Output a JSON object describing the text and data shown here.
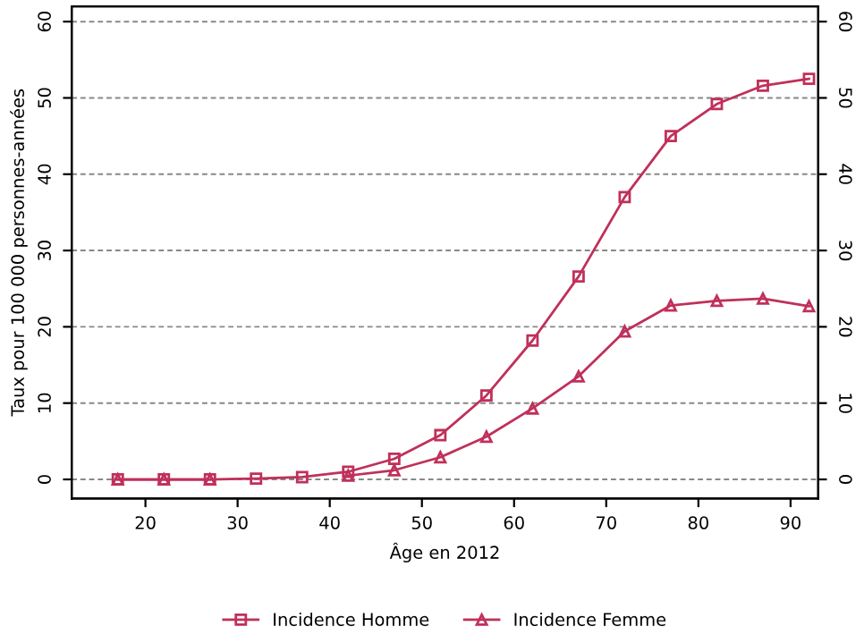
{
  "chart_data": {
    "type": "line",
    "xlabel": "Âge en 2012",
    "ylabel": "Taux pour 100 000 personnes-années",
    "x": [
      17,
      22,
      27,
      32,
      37,
      42,
      47,
      52,
      57,
      62,
      67,
      72,
      77,
      82,
      87,
      92
    ],
    "series": [
      {
        "name": "Incidence Homme",
        "color": "#c0305a",
        "marker": "square",
        "values": [
          0,
          0,
          0,
          0.1,
          0.3,
          1.0,
          2.7,
          5.8,
          11,
          18.2,
          26.6,
          37,
          45,
          49.2,
          51.6,
          52.5
        ]
      },
      {
        "name": "Incidence Femme",
        "color": "#c0305a",
        "marker": "triangle",
        "values": [
          0,
          0,
          0,
          null,
          null,
          0.5,
          1.2,
          2.9,
          5.6,
          9.3,
          13.5,
          19.4,
          22.8,
          23.4,
          23.7,
          22.7
        ]
      }
    ],
    "xlim": [
      12,
      93
    ],
    "xticks": [
      20,
      30,
      40,
      50,
      60,
      70,
      80,
      90
    ],
    "ylim": [
      -2.5,
      62
    ],
    "yticks": [
      0,
      10,
      20,
      30,
      40,
      50,
      60
    ],
    "y2lim": [
      -2.5,
      62
    ],
    "y2ticks": [
      0,
      10,
      20,
      30,
      40,
      50,
      60
    ],
    "grid": "y",
    "legend": "bottom",
    "line_style": "solid"
  }
}
